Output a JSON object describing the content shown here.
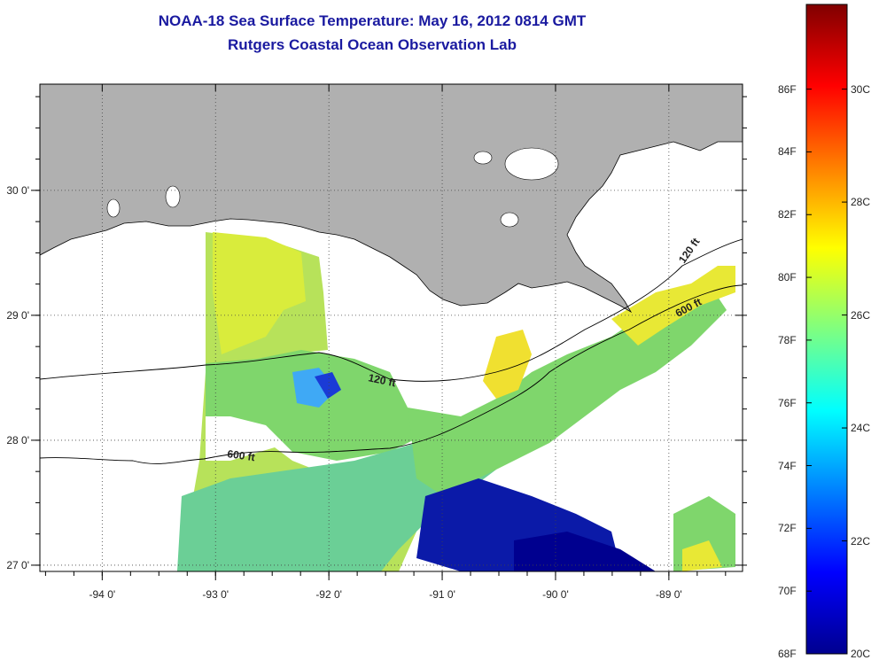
{
  "title": {
    "line1": "NOAA-18 Sea Surface Temperature:  May 16, 2012 0814 GMT",
    "line2": "Rutgers Coastal Ocean Observation Lab"
  },
  "map": {
    "lon_range": [
      -94.55,
      -88.35
    ],
    "lat_range": [
      26.95,
      30.85
    ],
    "x_ticks": [
      {
        "value": -94,
        "label": "-94 0'"
      },
      {
        "value": -93,
        "label": "-93 0'"
      },
      {
        "value": -92,
        "label": "-92 0'"
      },
      {
        "value": -91,
        "label": "-91 0'"
      },
      {
        "value": -90,
        "label": "-90 0'"
      },
      {
        "value": -89,
        "label": "-89 0'"
      }
    ],
    "y_ticks": [
      {
        "value": 27,
        "label": "27 0'"
      },
      {
        "value": 28,
        "label": "28 0'"
      },
      {
        "value": 29,
        "label": "29 0'"
      },
      {
        "value": 30,
        "label": "30 0'"
      }
    ],
    "grid": "dotted",
    "land_color": "#b0b0b0",
    "no_data_color": "#ffffff",
    "contours": [
      {
        "label": "120 ft"
      },
      {
        "label": "600 ft"
      }
    ]
  },
  "colorbar": {
    "range_c": [
      20,
      31.5
    ],
    "celsius_labels": [
      "30C",
      "28C",
      "26C",
      "24C",
      "22C",
      "20C"
    ],
    "fahrenheit_labels": [
      "86F",
      "84F",
      "82F",
      "80F",
      "78F",
      "76F",
      "74F",
      "72F",
      "70F",
      "68F"
    ],
    "colormap": "jet"
  }
}
